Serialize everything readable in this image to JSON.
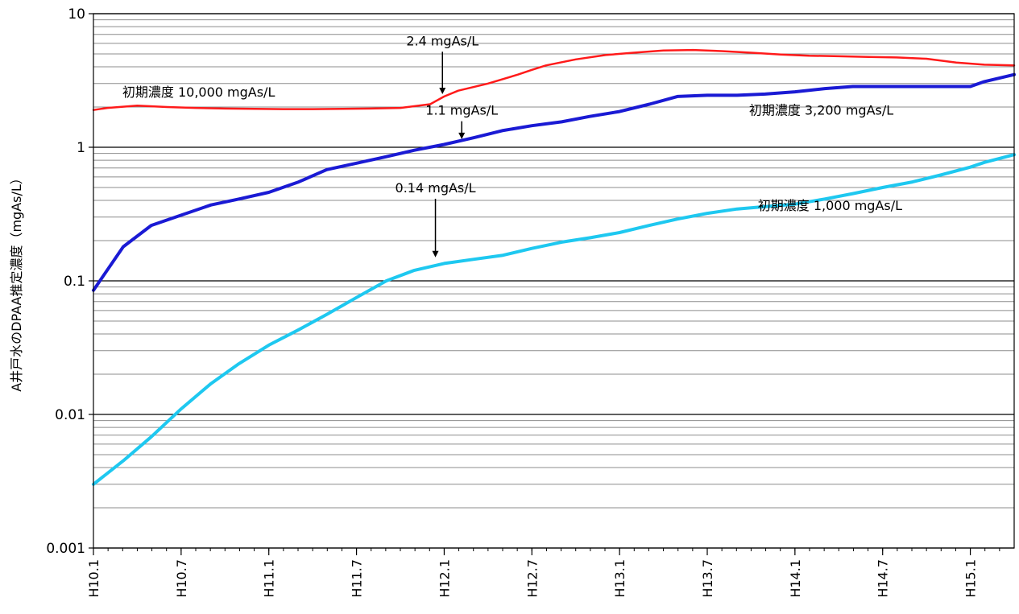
{
  "chart_data": {
    "type": "line",
    "title": "",
    "xlabel": "",
    "ylabel": "A井戸水のDPAA推定濃度（mgAs/L）",
    "y_scale": "log",
    "ylim": [
      0.001,
      10
    ],
    "y_ticks": [
      0.001,
      0.01,
      0.1,
      1,
      10
    ],
    "y_tick_labels": [
      "0.001",
      "0.01",
      "0.1",
      "1",
      "10"
    ],
    "grid": "horizontal major and minor",
    "legend": "none",
    "x_range": [
      1998.0,
      2003.25
    ],
    "x_ticks": [
      1998.0,
      1998.5,
      1999.0,
      1999.5,
      2000.0,
      2000.5,
      2001.0,
      2001.5,
      2002.0,
      2002.5,
      2003.0
    ],
    "x_tick_labels": [
      "H10.1",
      "H10.7",
      "H11.1",
      "H11.7",
      "H12.1",
      "H12.7",
      "H13.1",
      "H13.7",
      "H14.1",
      "H14.7",
      "H15.1"
    ],
    "series": [
      {
        "color": "#ff1a1a",
        "stroke_width": 2.5,
        "x": [
          1998.0,
          1998.08,
          1998.25,
          1998.42,
          1998.58,
          1998.75,
          1998.92,
          1999.08,
          1999.25,
          1999.42,
          1999.58,
          1999.75,
          1999.92,
          2000.0,
          2000.08,
          2000.25,
          2000.42,
          2000.5,
          2000.58,
          2000.75,
          2000.92,
          2001.08,
          2001.25,
          2001.42,
          2001.58,
          2001.75,
          2001.92,
          2002.08,
          2002.25,
          2002.42,
          2002.58,
          2002.75,
          2002.92,
          2003.08,
          2003.25
        ],
        "values": [
          1.9,
          1.97,
          2.05,
          2.0,
          1.97,
          1.95,
          1.94,
          1.93,
          1.93,
          1.94,
          1.95,
          1.97,
          2.1,
          2.4,
          2.65,
          3.0,
          3.5,
          3.8,
          4.1,
          4.55,
          4.9,
          5.1,
          5.3,
          5.35,
          5.25,
          5.1,
          4.95,
          4.85,
          4.8,
          4.75,
          4.7,
          4.6,
          4.3,
          4.15,
          4.1
        ]
      },
      {
        "color": "#1a1ad4",
        "stroke_width": 4,
        "x": [
          1998.0,
          1998.17,
          1998.33,
          1998.5,
          1998.67,
          1998.83,
          1999.0,
          1999.17,
          1999.33,
          1999.5,
          1999.67,
          1999.83,
          2000.0,
          2000.17,
          2000.33,
          2000.5,
          2000.67,
          2000.83,
          2001.0,
          2001.17,
          2001.33,
          2001.5,
          2001.67,
          2001.83,
          2002.0,
          2002.17,
          2002.33,
          2002.5,
          2002.67,
          2002.83,
          2003.0,
          2003.08,
          2003.25
        ],
        "values": [
          0.085,
          0.18,
          0.26,
          0.31,
          0.37,
          0.41,
          0.46,
          0.55,
          0.68,
          0.76,
          0.85,
          0.95,
          1.05,
          1.18,
          1.33,
          1.45,
          1.55,
          1.7,
          1.85,
          2.1,
          2.4,
          2.45,
          2.45,
          2.5,
          2.6,
          2.75,
          2.85,
          2.85,
          2.85,
          2.85,
          2.85,
          3.1,
          3.5
        ]
      },
      {
        "color": "#1ec8f0",
        "stroke_width": 4,
        "x": [
          1998.0,
          1998.17,
          1998.33,
          1998.5,
          1998.67,
          1998.83,
          1999.0,
          1999.17,
          1999.33,
          1999.5,
          1999.67,
          1999.83,
          2000.0,
          2000.17,
          2000.33,
          2000.5,
          2000.67,
          2000.83,
          2001.0,
          2001.17,
          2001.33,
          2001.5,
          2001.67,
          2001.83,
          2002.0,
          2002.17,
          2002.33,
          2002.5,
          2002.67,
          2002.83,
          2003.0,
          2003.08,
          2003.25
        ],
        "values": [
          0.003,
          0.0045,
          0.0068,
          0.011,
          0.017,
          0.024,
          0.033,
          0.043,
          0.056,
          0.075,
          0.1,
          0.12,
          0.135,
          0.145,
          0.155,
          0.175,
          0.195,
          0.21,
          0.23,
          0.26,
          0.29,
          0.32,
          0.345,
          0.36,
          0.375,
          0.41,
          0.45,
          0.5,
          0.55,
          0.62,
          0.71,
          0.77,
          0.88
        ]
      }
    ],
    "annotations": [
      {
        "text": "初期濃度 10,000 mgAs/L",
        "x": 1998.6,
        "y": 2.4,
        "arrow": false
      },
      {
        "text": "2.4 mgAs/L",
        "x": 1999.99,
        "y": 5.8,
        "arrow": true,
        "arrow_to_y": 2.5
      },
      {
        "text": "1.1 mgAs/L",
        "x": 2000.1,
        "y": 1.75,
        "arrow": true,
        "arrow_to_y": 1.15
      },
      {
        "text": "初期濃度 3,200 mgAs/L",
        "x": 2002.15,
        "y": 1.75,
        "arrow": false
      },
      {
        "text": "0.14 mgAs/L",
        "x": 1999.95,
        "y": 0.46,
        "arrow": true,
        "arrow_to_y": 0.15
      },
      {
        "text": "初期濃度 1,000 mgAs/L",
        "x": 2002.2,
        "y": 0.34,
        "arrow": false
      }
    ]
  }
}
